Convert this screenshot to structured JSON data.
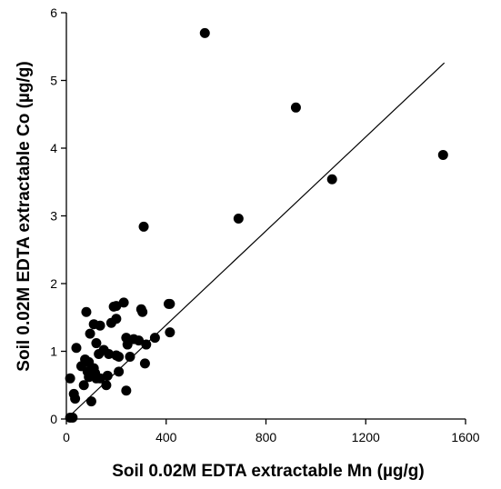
{
  "chart_data": {
    "type": "scatter",
    "title": "",
    "xlabel": "Soil 0.02M EDTA extractable Mn (µg/g)",
    "ylabel": "Soil 0.02M EDTA extractable Co (µg/g)",
    "xlim": [
      0,
      1600
    ],
    "ylim": [
      0,
      6
    ],
    "xticks": [
      0,
      400,
      800,
      1200,
      1600
    ],
    "yticks": [
      0,
      1,
      2,
      3,
      4,
      5,
      6
    ],
    "grid": false,
    "legend": "none",
    "marker_color": "#000000",
    "points": [
      {
        "x": 555,
        "y": 5.7
      },
      {
        "x": 920,
        "y": 4.6
      },
      {
        "x": 1510,
        "y": 3.9
      },
      {
        "x": 1065,
        "y": 3.54
      },
      {
        "x": 690,
        "y": 2.96
      },
      {
        "x": 310,
        "y": 2.84
      },
      {
        "x": 230,
        "y": 1.72
      },
      {
        "x": 415,
        "y": 1.7
      },
      {
        "x": 410,
        "y": 1.7
      },
      {
        "x": 190,
        "y": 1.66
      },
      {
        "x": 200,
        "y": 1.67
      },
      {
        "x": 80,
        "y": 1.58
      },
      {
        "x": 300,
        "y": 1.62
      },
      {
        "x": 305,
        "y": 1.58
      },
      {
        "x": 200,
        "y": 1.48
      },
      {
        "x": 180,
        "y": 1.42
      },
      {
        "x": 110,
        "y": 1.4
      },
      {
        "x": 135,
        "y": 1.38
      },
      {
        "x": 415,
        "y": 1.28
      },
      {
        "x": 95,
        "y": 1.26
      },
      {
        "x": 355,
        "y": 1.2
      },
      {
        "x": 240,
        "y": 1.2
      },
      {
        "x": 270,
        "y": 1.18
      },
      {
        "x": 290,
        "y": 1.16
      },
      {
        "x": 120,
        "y": 1.12
      },
      {
        "x": 245,
        "y": 1.1
      },
      {
        "x": 320,
        "y": 1.1
      },
      {
        "x": 40,
        "y": 1.05
      },
      {
        "x": 150,
        "y": 1.02
      },
      {
        "x": 130,
        "y": 0.96
      },
      {
        "x": 170,
        "y": 0.96
      },
      {
        "x": 200,
        "y": 0.94
      },
      {
        "x": 210,
        "y": 0.92
      },
      {
        "x": 255,
        "y": 0.92
      },
      {
        "x": 75,
        "y": 0.88
      },
      {
        "x": 90,
        "y": 0.84
      },
      {
        "x": 315,
        "y": 0.82
      },
      {
        "x": 60,
        "y": 0.78
      },
      {
        "x": 110,
        "y": 0.75
      },
      {
        "x": 95,
        "y": 0.72
      },
      {
        "x": 85,
        "y": 0.7
      },
      {
        "x": 210,
        "y": 0.7
      },
      {
        "x": 115,
        "y": 0.68
      },
      {
        "x": 100,
        "y": 0.65
      },
      {
        "x": 165,
        "y": 0.64
      },
      {
        "x": 90,
        "y": 0.62
      },
      {
        "x": 15,
        "y": 0.6
      },
      {
        "x": 120,
        "y": 0.6
      },
      {
        "x": 135,
        "y": 0.6
      },
      {
        "x": 70,
        "y": 0.5
      },
      {
        "x": 160,
        "y": 0.5
      },
      {
        "x": 240,
        "y": 0.42
      },
      {
        "x": 30,
        "y": 0.37
      },
      {
        "x": 35,
        "y": 0.3
      },
      {
        "x": 100,
        "y": 0.26
      },
      {
        "x": 15,
        "y": 0.02
      },
      {
        "x": 25,
        "y": 0.02
      }
    ],
    "regression_line": {
      "x": [
        0,
        1515
      ],
      "y": [
        0.0,
        5.26
      ]
    }
  }
}
